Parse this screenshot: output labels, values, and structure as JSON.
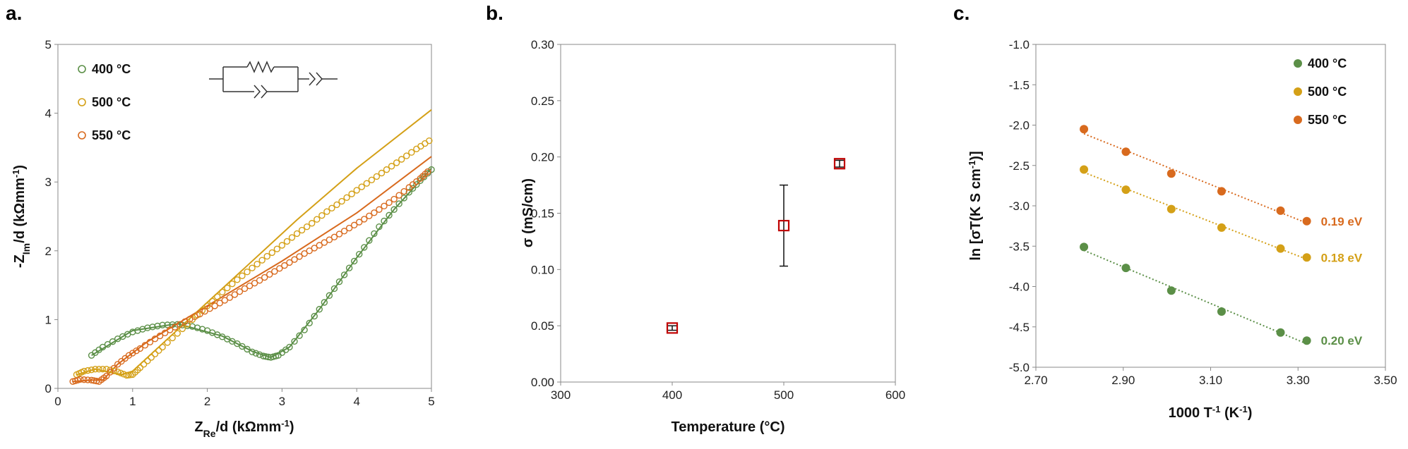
{
  "panels": [
    "a.",
    "b.",
    "c."
  ],
  "colors": {
    "c400": "#5b8f47",
    "c500": "#d4a017",
    "c550": "#d86a1e",
    "marker_b": "#c00000"
  },
  "chart_data": [
    {
      "type": "scatter",
      "panel": "a.",
      "xlabel_main": "Z",
      "xlabel_sub": "Re",
      "xlabel_rest": "/d (kΩmm",
      "xlabel_sup": "-1",
      "xlabel_end": ")",
      "ylabel_main": "-Z",
      "ylabel_sub": "Im",
      "ylabel_rest": "/d (kΩmm",
      "ylabel_sup": "-1",
      "ylabel_end": ")",
      "xlim": [
        0,
        5
      ],
      "ylim": [
        0,
        5
      ],
      "xticks": [
        "0",
        "1",
        "2",
        "3",
        "4",
        "5"
      ],
      "yticks": [
        "0",
        "1",
        "2",
        "3",
        "4",
        "5"
      ],
      "legend_position": "top-left",
      "inset": "equivalent circuit: resistor parallel with constant phase element, in series with constant phase element",
      "series": [
        {
          "name": "400 °C",
          "color": "#5b8f47",
          "points": [
            [
              0.45,
              0.48
            ],
            [
              0.6,
              0.6
            ],
            [
              0.8,
              0.72
            ],
            [
              1.0,
              0.82
            ],
            [
              1.2,
              0.88
            ],
            [
              1.4,
              0.92
            ],
            [
              1.6,
              0.93
            ],
            [
              1.8,
              0.9
            ],
            [
              2.0,
              0.84
            ],
            [
              2.2,
              0.75
            ],
            [
              2.4,
              0.65
            ],
            [
              2.6,
              0.53
            ],
            [
              2.75,
              0.47
            ],
            [
              2.85,
              0.45
            ],
            [
              2.95,
              0.48
            ],
            [
              3.1,
              0.6
            ],
            [
              3.3,
              0.85
            ],
            [
              3.5,
              1.15
            ],
            [
              3.7,
              1.45
            ],
            [
              3.9,
              1.75
            ],
            [
              4.1,
              2.05
            ],
            [
              4.3,
              2.35
            ],
            [
              4.5,
              2.6
            ],
            [
              4.7,
              2.85
            ],
            [
              4.85,
              3.02
            ],
            [
              5.0,
              3.18
            ]
          ],
          "fit": [
            [
              0.45,
              0.48
            ],
            [
              1.0,
              0.84
            ],
            [
              1.6,
              0.94
            ],
            [
              2.2,
              0.76
            ],
            [
              2.6,
              0.54
            ],
            [
              2.85,
              0.45
            ],
            [
              3.1,
              0.6
            ],
            [
              3.5,
              1.15
            ],
            [
              4.0,
              1.9
            ],
            [
              4.5,
              2.6
            ],
            [
              5.0,
              3.2
            ]
          ]
        },
        {
          "name": "500 °C",
          "color": "#d4a017",
          "points": [
            [
              0.25,
              0.2
            ],
            [
              0.35,
              0.25
            ],
            [
              0.5,
              0.28
            ],
            [
              0.65,
              0.28
            ],
            [
              0.8,
              0.24
            ],
            [
              0.92,
              0.19
            ],
            [
              1.0,
              0.2
            ],
            [
              1.1,
              0.3
            ],
            [
              1.25,
              0.45
            ],
            [
              1.4,
              0.6
            ],
            [
              1.6,
              0.8
            ],
            [
              1.8,
              1.0
            ],
            [
              2.0,
              1.2
            ],
            [
              2.2,
              1.4
            ],
            [
              2.4,
              1.58
            ],
            [
              2.6,
              1.75
            ],
            [
              2.8,
              1.92
            ],
            [
              3.0,
              2.08
            ],
            [
              3.2,
              2.25
            ],
            [
              3.4,
              2.4
            ],
            [
              3.6,
              2.57
            ],
            [
              3.8,
              2.72
            ],
            [
              4.0,
              2.88
            ],
            [
              4.2,
              3.03
            ],
            [
              4.4,
              3.18
            ],
            [
              4.6,
              3.33
            ],
            [
              4.8,
              3.48
            ],
            [
              4.97,
              3.6
            ]
          ],
          "fit": [
            [
              0.25,
              0.2
            ],
            [
              0.5,
              0.28
            ],
            [
              0.85,
              0.2
            ],
            [
              1.0,
              0.25
            ],
            [
              1.3,
              0.55
            ],
            [
              1.8,
              1.05
            ],
            [
              2.5,
              1.75
            ],
            [
              3.2,
              2.45
            ],
            [
              4.0,
              3.2
            ],
            [
              5.0,
              4.05
            ]
          ]
        },
        {
          "name": "550 °C",
          "color": "#d86a1e",
          "points": [
            [
              0.2,
              0.1
            ],
            [
              0.3,
              0.13
            ],
            [
              0.45,
              0.12
            ],
            [
              0.55,
              0.1
            ],
            [
              0.65,
              0.18
            ],
            [
              0.8,
              0.35
            ],
            [
              0.95,
              0.48
            ],
            [
              1.1,
              0.58
            ],
            [
              1.3,
              0.72
            ],
            [
              1.5,
              0.85
            ],
            [
              1.7,
              0.97
            ],
            [
              1.9,
              1.08
            ],
            [
              2.1,
              1.2
            ],
            [
              2.3,
              1.32
            ],
            [
              2.5,
              1.45
            ],
            [
              2.7,
              1.57
            ],
            [
              2.9,
              1.7
            ],
            [
              3.1,
              1.83
            ],
            [
              3.3,
              1.96
            ],
            [
              3.5,
              2.08
            ],
            [
              3.7,
              2.2
            ],
            [
              3.9,
              2.33
            ],
            [
              4.1,
              2.46
            ],
            [
              4.3,
              2.6
            ],
            [
              4.5,
              2.75
            ],
            [
              4.7,
              2.92
            ],
            [
              4.85,
              3.05
            ],
            [
              4.95,
              3.15
            ]
          ],
          "fit": [
            [
              0.2,
              0.1
            ],
            [
              0.45,
              0.12
            ],
            [
              0.6,
              0.12
            ],
            [
              0.8,
              0.35
            ],
            [
              1.2,
              0.68
            ],
            [
              2.0,
              1.2
            ],
            [
              3.0,
              1.85
            ],
            [
              4.0,
              2.55
            ],
            [
              5.0,
              3.37
            ]
          ]
        }
      ]
    },
    {
      "type": "scatter",
      "panel": "b.",
      "xlabel": "Temperature (°C)",
      "ylabel": "σ (mS/cm)",
      "xlim": [
        300,
        600
      ],
      "ylim": [
        0,
        0.3
      ],
      "xticks": [
        "300",
        "400",
        "500",
        "600"
      ],
      "yticks": [
        "0.00",
        "0.05",
        "0.10",
        "0.15",
        "0.20",
        "0.25",
        "0.30"
      ],
      "points": [
        {
          "x": 400,
          "y": 0.048,
          "err": 0.002
        },
        {
          "x": 500,
          "y": 0.139,
          "err": 0.036
        },
        {
          "x": 550,
          "y": 0.194,
          "err": 0.003
        }
      ]
    },
    {
      "type": "scatter",
      "panel": "c.",
      "xlabel": "1000 T",
      "xlabel_sup": "-1",
      "xlabel_end": " (K",
      "xlabel_sup2": "-1",
      "xlabel_end2": ")",
      "ylabel": "ln [σT(K S cm",
      "ylabel_sup": "-1",
      "ylabel_end": ")]",
      "xlim": [
        2.7,
        3.5
      ],
      "ylim": [
        -5.0,
        -1.0
      ],
      "xticks": [
        "2.70",
        "2.90",
        "3.10",
        "3.30",
        "3.50"
      ],
      "yticks": [
        "-1.0",
        "-1.5",
        "-2.0",
        "-2.5",
        "-3.0",
        "-3.5",
        "-4.0",
        "-4.5",
        "-5.0"
      ],
      "legend_position": "top-right",
      "series": [
        {
          "name": "400 °C",
          "color": "#5b8f47",
          "annotation": "0.20 eV",
          "x": [
            2.81,
            2.906,
            3.01,
            3.125,
            3.26,
            3.32
          ],
          "y": [
            -3.51,
            -3.77,
            -4.05,
            -4.31,
            -4.57,
            -4.67
          ]
        },
        {
          "name": "500 °C",
          "color": "#d4a017",
          "annotation": "0.18 eV",
          "x": [
            2.81,
            2.906,
            3.01,
            3.125,
            3.26,
            3.32
          ],
          "y": [
            -2.55,
            -2.8,
            -3.04,
            -3.27,
            -3.53,
            -3.64
          ]
        },
        {
          "name": "550 °C",
          "color": "#d86a1e",
          "annotation": "0.19 eV",
          "x": [
            2.81,
            2.906,
            3.01,
            3.125,
            3.26,
            3.32
          ],
          "y": [
            -2.05,
            -2.33,
            -2.6,
            -2.82,
            -3.06,
            -3.19
          ]
        }
      ]
    }
  ]
}
